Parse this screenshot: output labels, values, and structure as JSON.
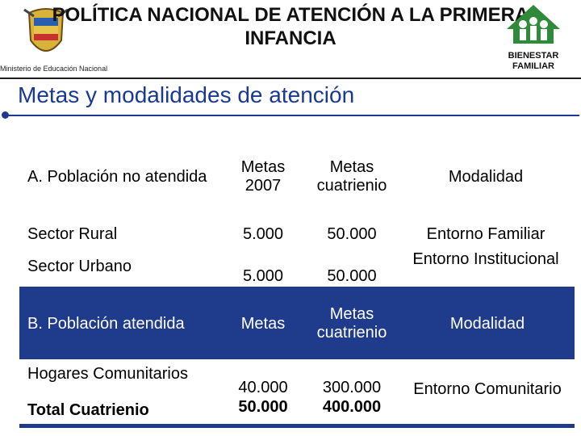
{
  "header": {
    "title_line1": "POLÍTICA NACIONAL DE ATENCIÓN A LA PRIMERA",
    "title_line2": "INFANCIA",
    "ministry": "Ministerio de Educación Nacional",
    "logo_right_line1": "BIENESTAR",
    "logo_right_line2": "FAMILIAR"
  },
  "subtitle": "Metas y modalidades de atención",
  "table_a": {
    "header": [
      "A. Población no atendida",
      "Metas 2007",
      "Metas cuatrienio",
      "Modalidad"
    ],
    "rows": [
      [
        "Sector Rural",
        "5.000",
        "50.000",
        "Entorno Familiar"
      ],
      [
        "Sector Urbano",
        "5.000",
        "50.000",
        "Entorno Institucional"
      ]
    ]
  },
  "table_b": {
    "header": [
      "B. Población atendida",
      "Metas",
      "Metas cuatrienio",
      "Modalidad"
    ],
    "rows": [
      [
        "Hogares Comunitarios",
        "40.000",
        "300.000",
        "Entorno Comunitario"
      ],
      [
        "Total Cuatrienio",
        "50.000",
        "400.000"
      ]
    ]
  },
  "colors": {
    "accent": "#1f3b8c",
    "text": "#000000"
  }
}
